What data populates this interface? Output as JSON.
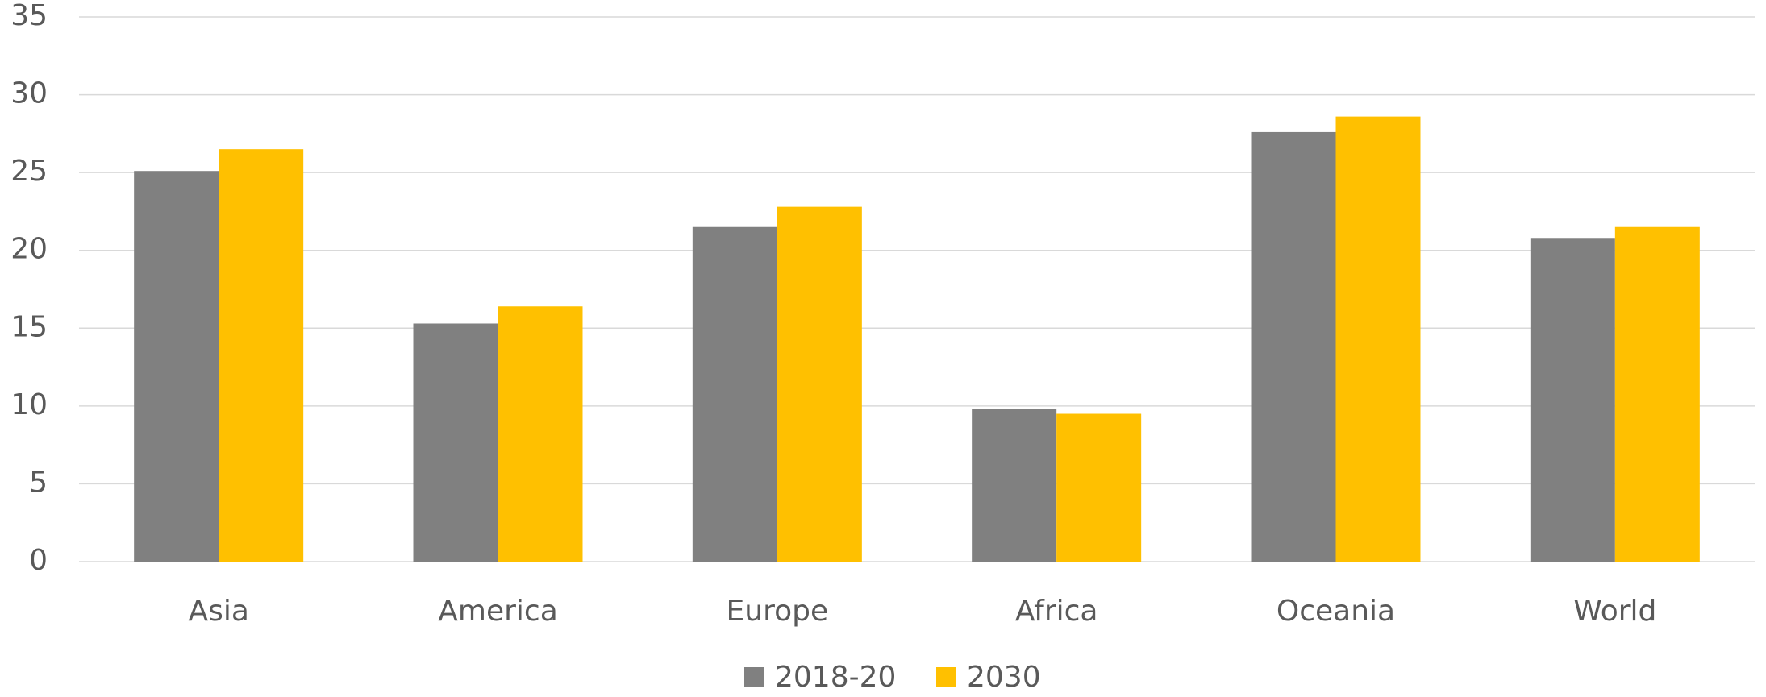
{
  "chart_data": {
    "type": "bar",
    "categories": [
      "Asia",
      "America",
      "Europe",
      "Africa",
      "Oceania",
      "World"
    ],
    "series": [
      {
        "name": "2018-20",
        "color": "#808080",
        "values": [
          25.1,
          15.3,
          21.5,
          9.8,
          27.6,
          20.8
        ]
      },
      {
        "name": "2030",
        "color": "#ffc000",
        "values": [
          26.5,
          16.4,
          22.8,
          9.5,
          28.6,
          21.5
        ]
      }
    ],
    "ylim": [
      0,
      35
    ],
    "yticks": [
      0,
      5,
      10,
      15,
      20,
      25,
      30,
      35
    ],
    "grid": true,
    "legend": "bottom"
  }
}
